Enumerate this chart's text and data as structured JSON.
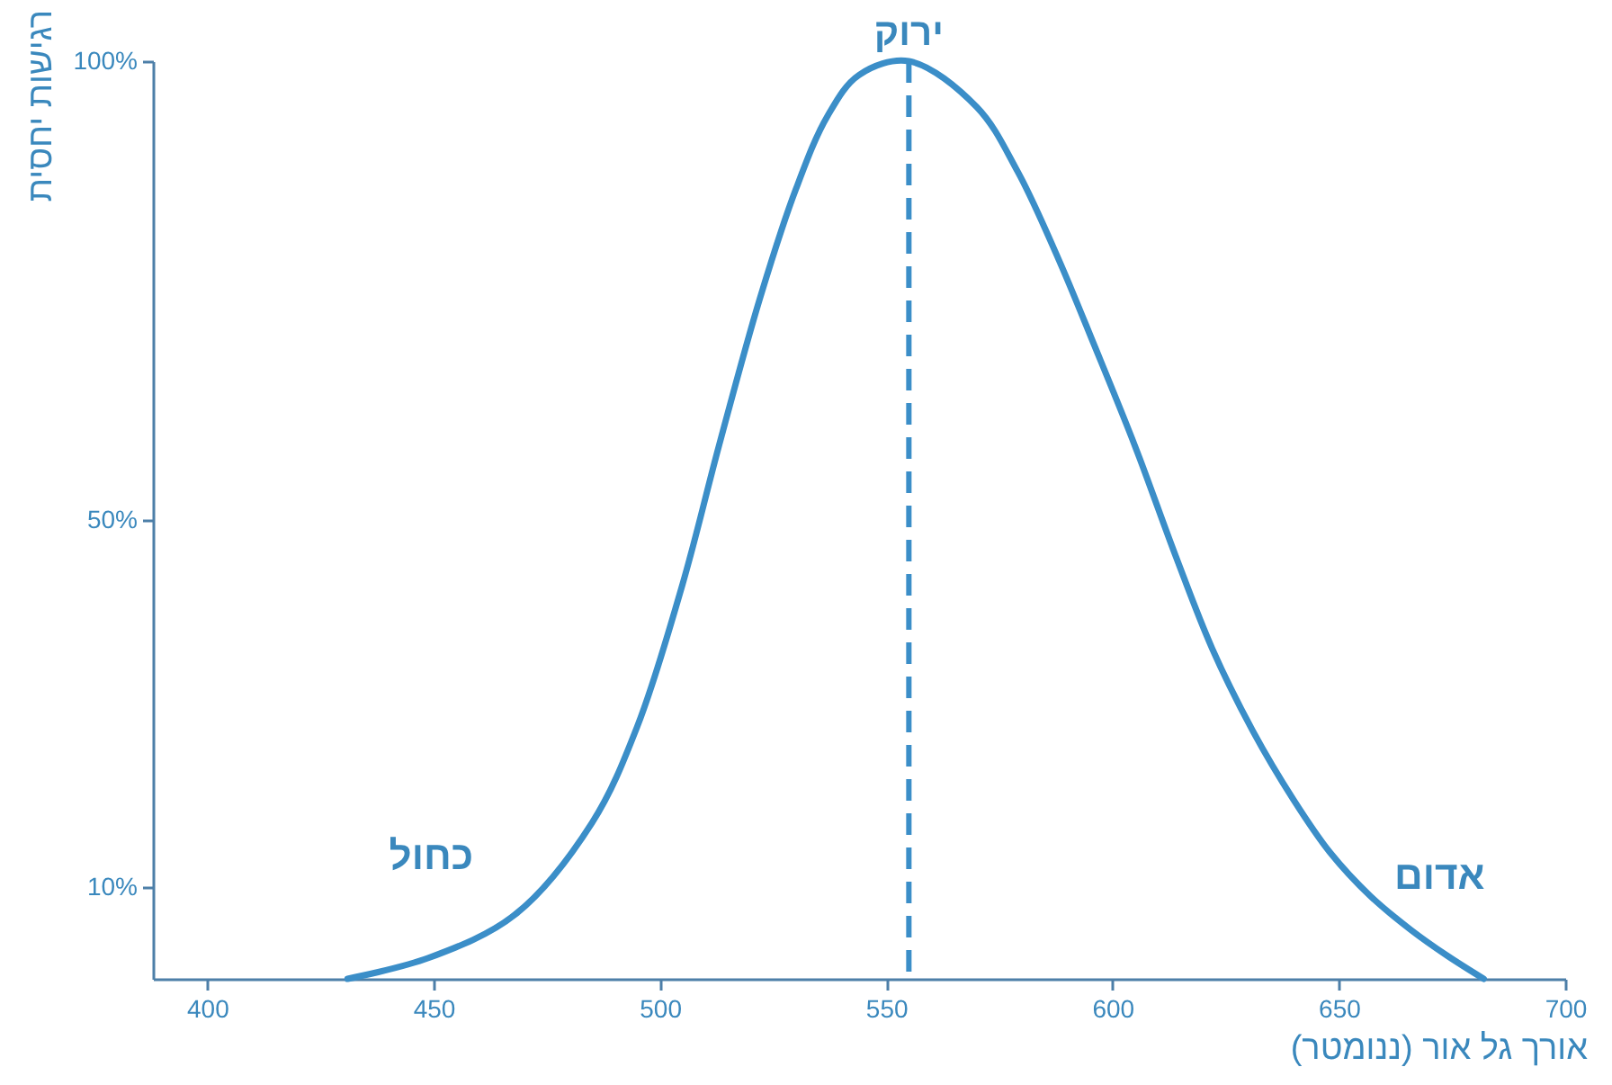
{
  "chart_data": {
    "type": "line",
    "xlabel": "אורך גל אור (ננומטר)",
    "ylabel": "רגישות יחסית",
    "x": [
      431,
      449,
      468,
      485,
      495,
      505,
      513,
      522,
      530,
      537,
      544,
      555,
      570,
      579,
      588,
      596,
      605,
      614,
      622,
      631,
      640,
      648,
      657,
      666,
      674,
      682
    ],
    "series": [
      {
        "color": "#3b8ec8",
        "values": [
          0,
          2.3,
          7,
          17,
          27.5,
          43,
          58,
          74,
          86,
          94,
          98.5,
          100,
          95,
          88,
          78.5,
          69,
          58,
          46,
          36,
          27,
          19.5,
          13.8,
          9,
          5.3,
          2.5,
          0
        ]
      }
    ],
    "xlim": [
      388,
      700
    ],
    "xticks": [
      400,
      450,
      500,
      550,
      600,
      650,
      700
    ],
    "ylim": [
      0,
      100
    ],
    "yticks": [
      {
        "value": 10,
        "label": "10%"
      },
      {
        "value": 50,
        "label": "50%"
      },
      {
        "value": 100,
        "label": "100%"
      }
    ],
    "ref_lines": [
      {
        "axis": "x",
        "value": 555,
        "label": "ירוק",
        "line_style": "dashed",
        "color": "#3b8ec8"
      }
    ],
    "annotations": [
      "כחול",
      "אדום"
    ]
  }
}
